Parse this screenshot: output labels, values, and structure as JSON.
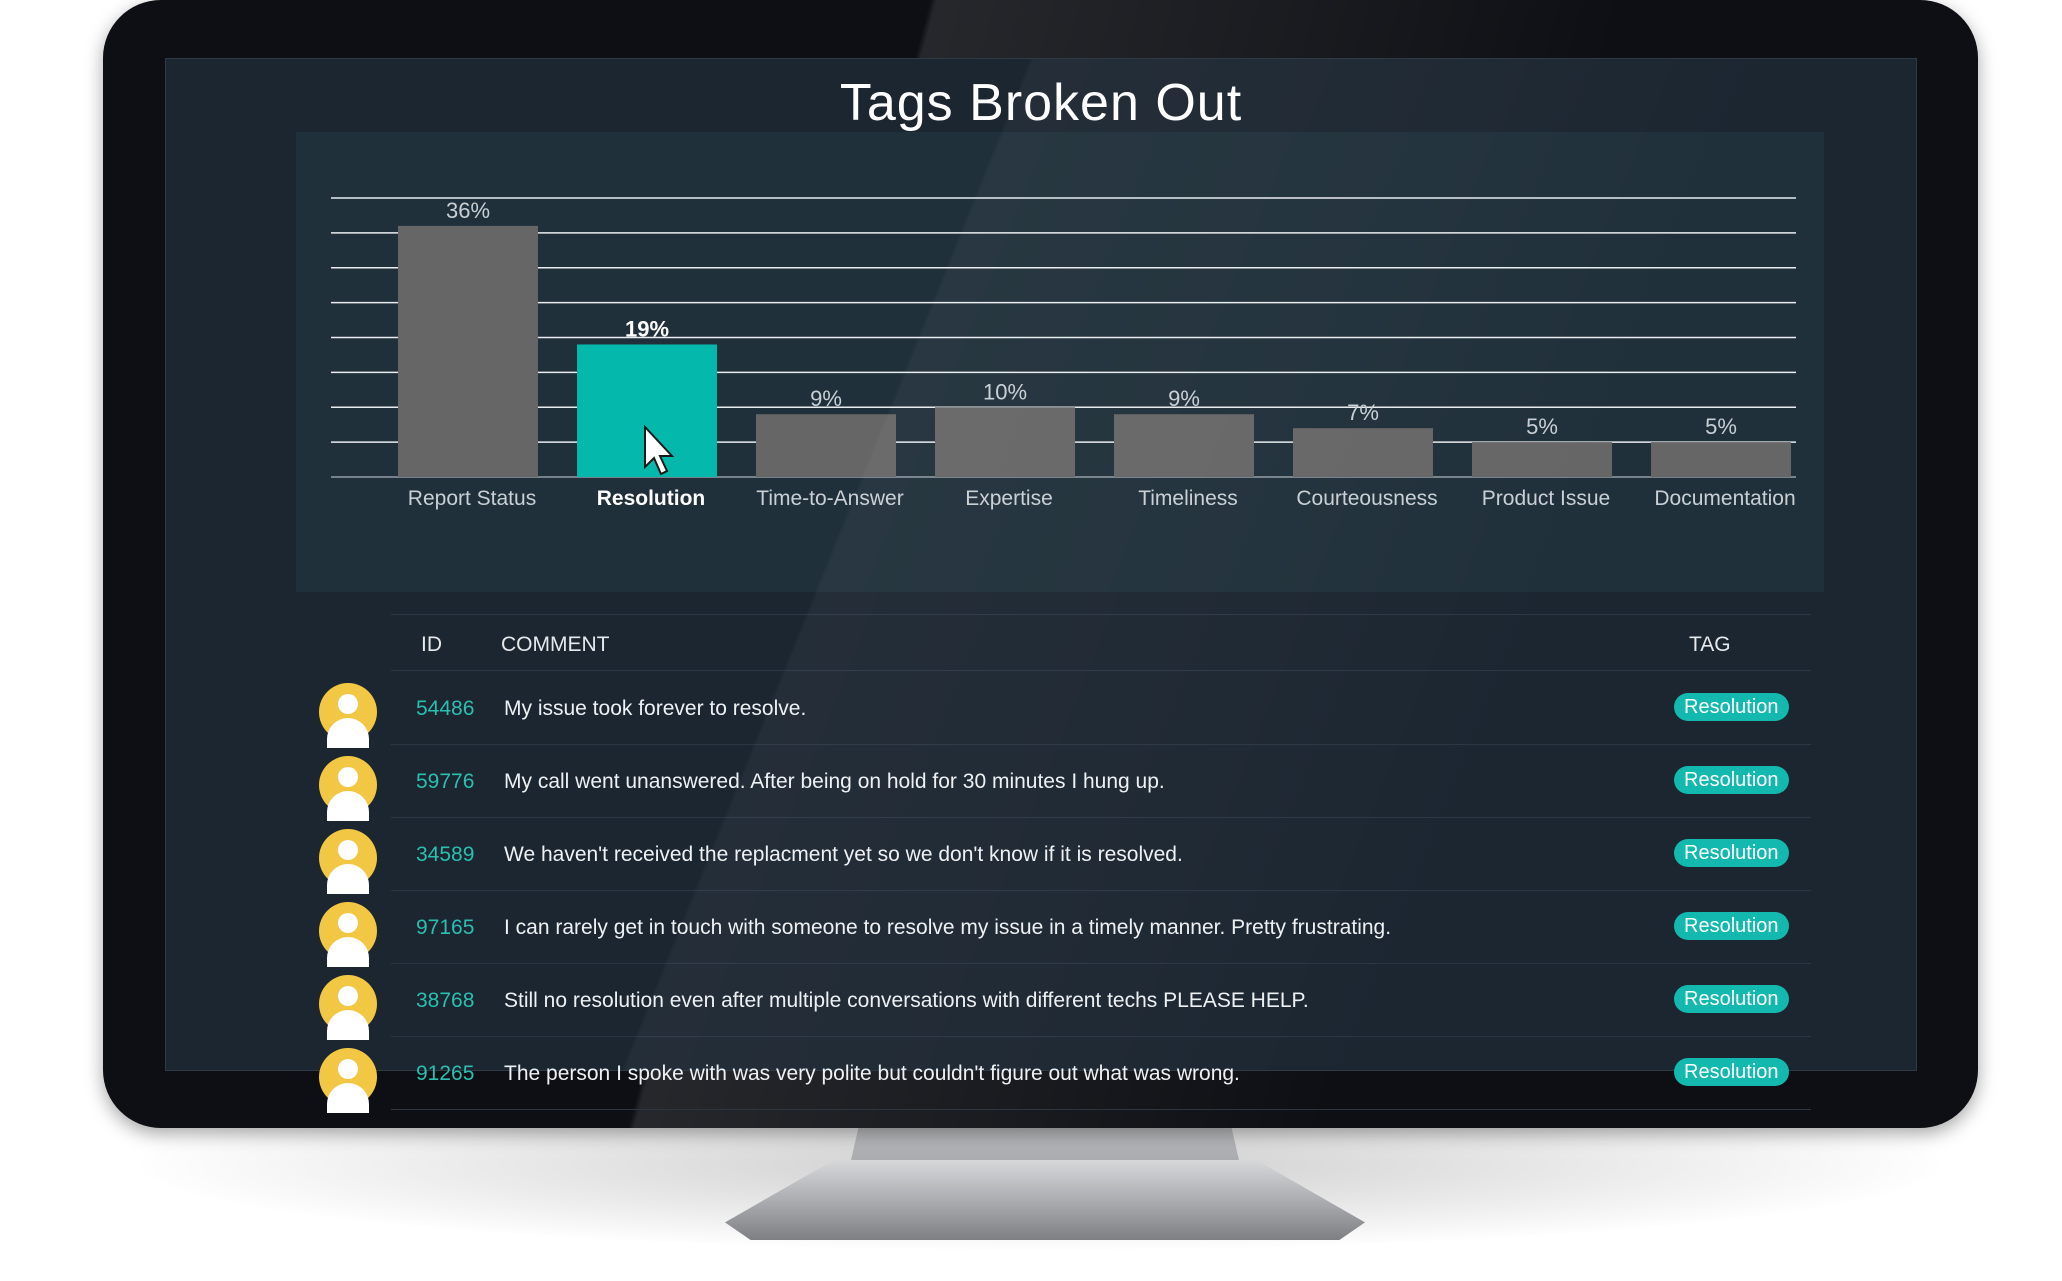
{
  "page": {
    "title": "Tags Broken Out"
  },
  "chart_data": {
    "type": "bar",
    "title": "Tags Broken Out",
    "categories": [
      "Report Status",
      "Resolution",
      "Time-to-Answer",
      "Expertise",
      "Timeliness",
      "Courteousness",
      "Product Issue",
      "Documentation"
    ],
    "values": [
      36,
      19,
      9,
      10,
      9,
      7,
      5,
      5
    ],
    "labels": [
      "36%",
      "19%",
      "9%",
      "10%",
      "9%",
      "7%",
      "5%",
      "5%"
    ],
    "highlighted_category": "Resolution",
    "ylim": [
      0,
      40
    ],
    "grid": true,
    "colors": {
      "bar": "#666666",
      "highlight": "#05b8ac",
      "grid": "#e8ecef",
      "label": "#c9cfd4"
    }
  },
  "table": {
    "headers": {
      "id": "ID",
      "comment": "COMMENT",
      "tag": "TAG"
    },
    "rows": [
      {
        "id": "54486",
        "comment": "My issue took forever to resolve.",
        "tag": "Resolution"
      },
      {
        "id": "59776",
        "comment": "My call went unanswered. After being on hold for 30 minutes I hung up.",
        "tag": "Resolution"
      },
      {
        "id": "34589",
        "comment": "We haven't received the replacment yet so we don't know if it is resolved.",
        "tag": "Resolution"
      },
      {
        "id": "97165",
        "comment": "I can rarely get in touch with someone to resolve my issue in a timely manner. Pretty frustrating.",
        "tag": "Resolution"
      },
      {
        "id": "38768",
        "comment": "Still no resolution even after multiple conversations with different techs PLEASE HELP.",
        "tag": "Resolution"
      },
      {
        "id": "91265",
        "comment": "The person I spoke with was very polite but couldn't figure out what was wrong.",
        "tag": "Resolution"
      }
    ]
  },
  "icons": {
    "avatar": "user-avatar-icon",
    "cursor": "mouse-pointer-icon"
  },
  "colors": {
    "accent": "#13b8ae",
    "avatar": "#f2c744",
    "screen_bg": "#1c2631"
  }
}
